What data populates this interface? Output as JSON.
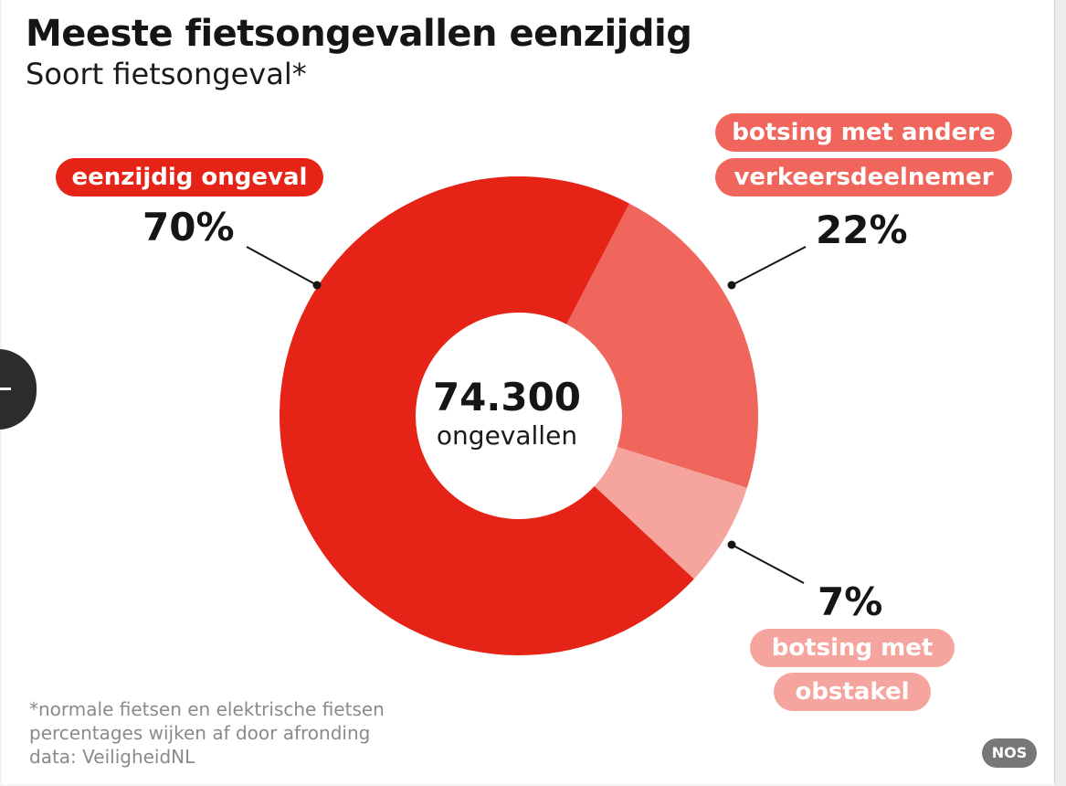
{
  "header": {
    "title": "Meeste fietsongevallen eenzijdig",
    "subtitle": "Soort fietsongeval*"
  },
  "chart_data": {
    "type": "pie",
    "title": "Meeste fietsongevallen eenzijdig",
    "subtitle": "Soort fietsongeval*",
    "center_value": "74.300",
    "center_unit": "ongevallen",
    "slices": [
      {
        "label_lines": [
          "eenzijdig ongeval"
        ],
        "value": 70,
        "value_label": "70%",
        "color": "#e52317"
      },
      {
        "label_lines": [
          "botsing met andere",
          "verkeersdeelnemer"
        ],
        "value": 22,
        "value_label": "22%",
        "color": "#f0665c"
      },
      {
        "label_lines": [
          "botsing met",
          "obstakel"
        ],
        "value": 7,
        "value_label": "7%",
        "color": "#f5a59d"
      }
    ]
  },
  "footnotes": [
    "*normale fietsen en elektrische fietsen",
    "percentages wijken af door afronding",
    "data: VeiligheidNL"
  ],
  "logo": "NOS"
}
